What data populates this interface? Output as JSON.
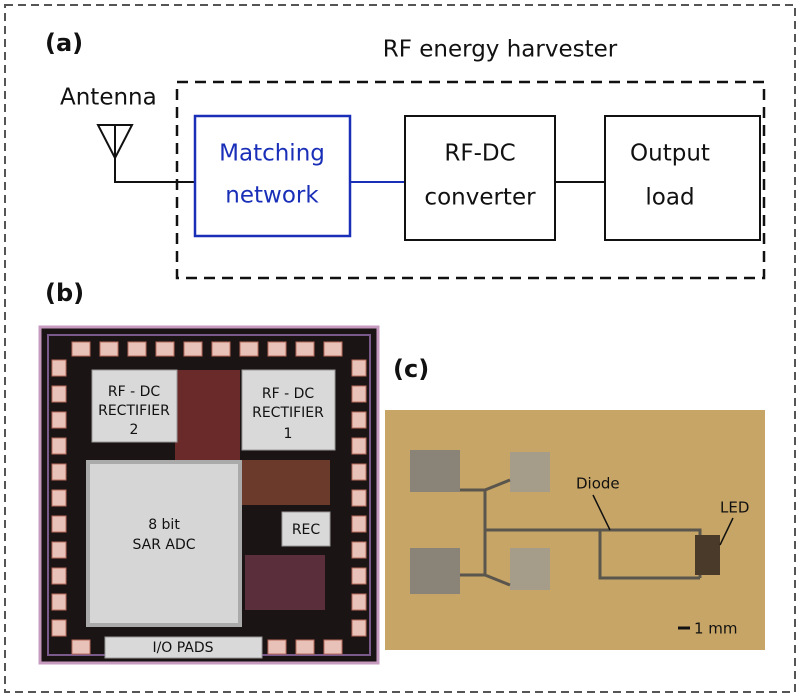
{
  "panel_a": {
    "label": "(a)",
    "title": "RF energy harvester",
    "antenna": "Antenna",
    "blocks": [
      {
        "lines": [
          "Matching",
          "network"
        ]
      },
      {
        "lines": [
          "RF-DC",
          "converter"
        ]
      },
      {
        "lines": [
          "Output",
          "load"
        ]
      }
    ]
  },
  "panel_b": {
    "label": "(b)",
    "blocks": [
      {
        "lines": [
          "RF - DC",
          "RECTIFIER",
          "2"
        ]
      },
      {
        "lines": [
          "RF - DC",
          "RECTIFIER",
          "1"
        ]
      },
      {
        "lines": [
          "8 bit",
          "SAR ADC"
        ]
      },
      {
        "lines": [
          "REC"
        ]
      },
      {
        "lines": [
          "I/O PADS"
        ]
      }
    ]
  },
  "panel_c": {
    "label": "(c)",
    "annotations": [
      "Diode",
      "LED"
    ],
    "scale": "1 mm"
  }
}
